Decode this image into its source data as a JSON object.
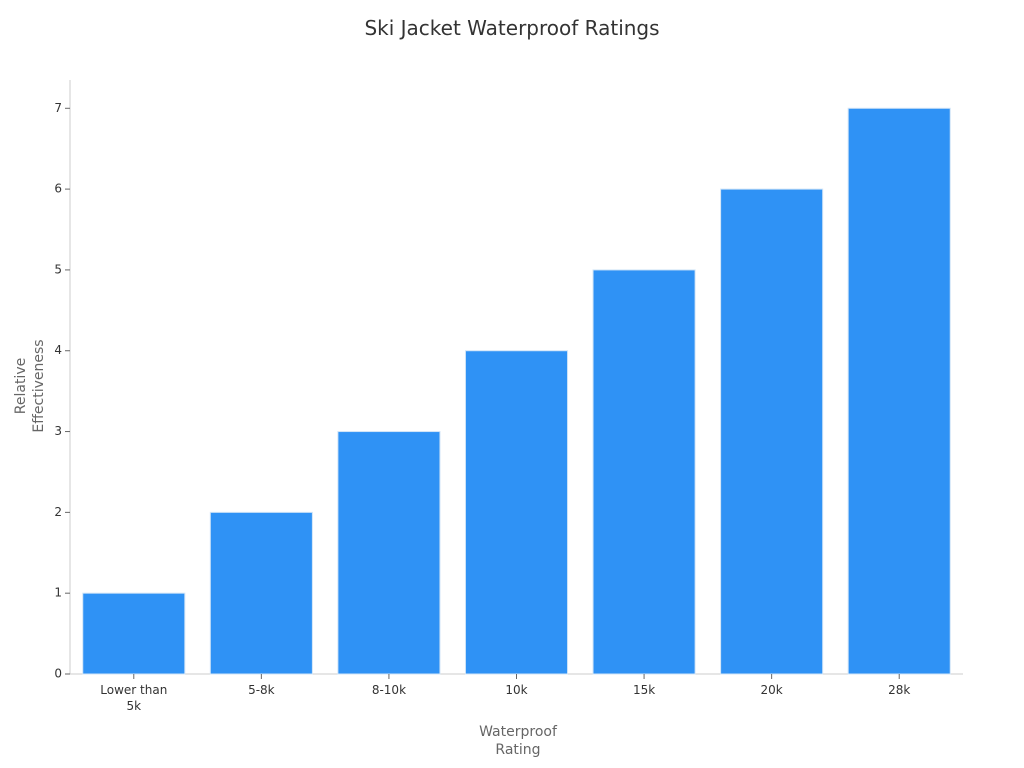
{
  "chart_data": {
    "type": "bar",
    "title": "Ski Jacket Waterproof Ratings",
    "xlabel": "Waterproof Rating",
    "ylabel": "Relative Effectiveness",
    "categories": [
      "Lower than 5k",
      "5-8k",
      "8-10k",
      "10k",
      "15k",
      "20k",
      "28k"
    ],
    "values": [
      1,
      2,
      3,
      4,
      5,
      6,
      7
    ],
    "color": "#2f92f5",
    "ylim": [
      0,
      7.35
    ],
    "yticks": [
      0,
      1,
      2,
      3,
      4,
      5,
      6,
      7
    ],
    "grid": false
  }
}
